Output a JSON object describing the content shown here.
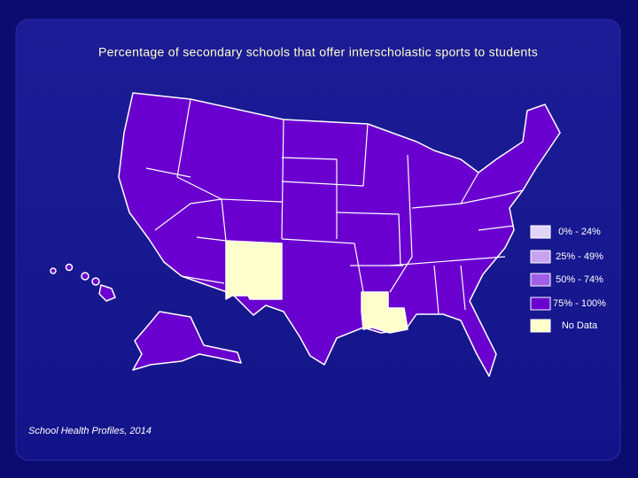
{
  "title": "Percentage of secondary schools that offer interscholastic sports to students",
  "legend": [
    {
      "label": "0% - 24%",
      "color": "#e2d4f7"
    },
    {
      "label": "25% - 49%",
      "color": "#c9a3ef"
    },
    {
      "label": "50% - 74%",
      "color": "#a05ee6"
    },
    {
      "label": "75% - 100%",
      "color": "#6a00cf"
    },
    {
      "label": "No Data",
      "color": "#ffffcc"
    }
  ],
  "source": "School Health Profiles, 2014"
}
